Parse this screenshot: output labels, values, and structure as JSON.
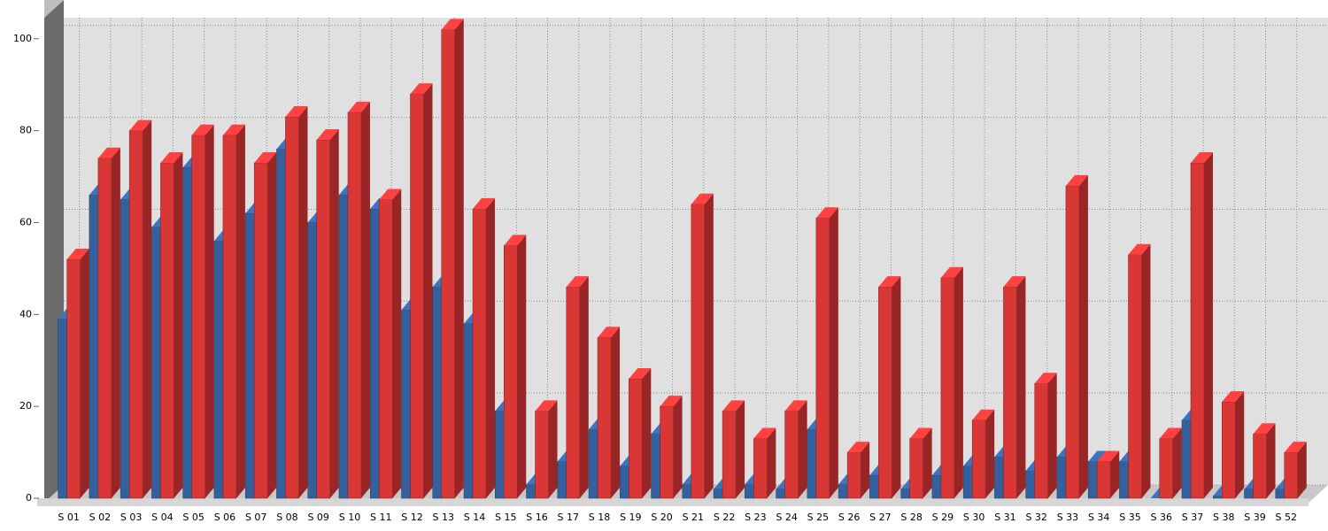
{
  "chart_data": {
    "type": "bar3d",
    "categories": [
      "S 01",
      "S 02",
      "S 03",
      "S 04",
      "S 05",
      "S 06",
      "S 07",
      "S 08",
      "S 09",
      "S 10",
      "S 11",
      "S 12",
      "S 13",
      "S 14",
      "S 15",
      "S 16",
      "S 17",
      "S 18",
      "S 19",
      "S 20",
      "S 21",
      "S 22",
      "S 23",
      "S 24",
      "S 25",
      "S 26",
      "S 27",
      "S 28",
      "S 29",
      "S 30",
      "S 31",
      "S 32",
      "S 33",
      "S 34",
      "S 35",
      "S 36",
      "S 37",
      "S 38",
      "S 39",
      "S 52"
    ],
    "series": [
      {
        "color": "#35609e",
        "values": [
          39,
          66,
          65,
          59,
          72,
          56,
          62,
          76,
          60,
          66,
          63,
          41,
          46,
          38,
          19,
          3,
          8,
          15,
          7,
          14,
          3,
          2,
          3,
          2,
          15,
          3,
          5,
          2,
          5,
          7,
          9,
          6,
          9,
          8,
          8,
          0,
          17,
          0.5,
          2,
          2
        ]
      },
      {
        "color": "#d93636",
        "values": [
          52,
          74,
          80,
          73,
          79,
          79,
          73,
          83,
          78,
          84,
          65,
          88,
          102,
          63,
          55,
          19,
          46,
          35,
          26,
          20,
          64,
          19,
          13,
          19,
          61,
          10,
          46,
          13,
          48,
          17,
          46,
          25,
          68,
          8,
          53,
          13,
          73,
          21,
          14,
          10
        ]
      }
    ],
    "ylim": [
      0,
      104
    ],
    "yticks": [
      0,
      20,
      40,
      60,
      80,
      100
    ],
    "grid": true
  }
}
